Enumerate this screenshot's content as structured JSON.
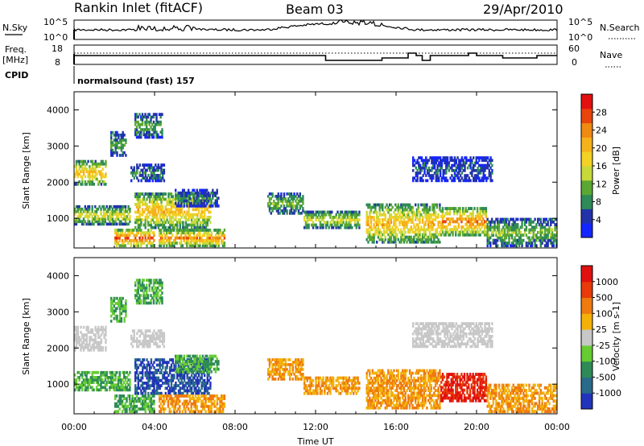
{
  "header": {
    "title": "Rankin Inlet (fitACF)",
    "beam": "Beam 03",
    "date": "29/Apr/2010"
  },
  "noise_panel": {
    "left_label": "N.Sky",
    "right_label": "N.Search",
    "left_ticks": [
      "10^5",
      "10^0"
    ],
    "right_ticks": [
      "10^5",
      "10^0"
    ]
  },
  "freq_panel": {
    "left_label_line1": "Freq.",
    "left_label_line2": "[MHz]",
    "right_label": "Nave",
    "left_ticks": [
      "18",
      "8"
    ],
    "right_ticks": [
      "60",
      "0"
    ]
  },
  "cpid": {
    "label": "CPID",
    "value": "normalsound (fast) 157"
  },
  "x_axis": {
    "label": "Time UT",
    "ticks": [
      "00:00",
      "04:00",
      "08:00",
      "12:00",
      "16:00",
      "20:00",
      "00:00"
    ]
  },
  "chart_data": [
    {
      "type": "heatmap",
      "name": "power-panel",
      "ylabel": "Slant Range [km]",
      "xlabel": "Time UT",
      "xlim": [
        0,
        24
      ],
      "ylim": [
        180,
        4500
      ],
      "yticks": [
        "1000",
        "2000",
        "3000",
        "4000"
      ],
      "colorbar": {
        "label": "Power [dB]",
        "ticks": [
          "4",
          "8",
          "12",
          "16",
          "20",
          "24",
          "28"
        ],
        "range": [
          0,
          32
        ],
        "colors": [
          "#1426ff",
          "#2233aa",
          "#2e8b57",
          "#5aa832",
          "#c8d93a",
          "#f4d125",
          "#f6b21a",
          "#ef8a12",
          "#e8440c",
          "#e31010"
        ]
      }
    },
    {
      "type": "heatmap",
      "name": "velocity-panel",
      "ylabel": "Slant Range [km]",
      "xlabel": "Time UT",
      "xlim": [
        0,
        24
      ],
      "ylim": [
        180,
        4500
      ],
      "yticks": [
        "1000",
        "2000",
        "3000",
        "4000"
      ],
      "colorbar": {
        "label": "Velocity [m s-1]",
        "ticks": [
          "1000",
          "500",
          "100",
          "25",
          "-25",
          "-100",
          "-500",
          "-1000"
        ],
        "colors": [
          "#2233bb",
          "#2a6a8a",
          "#2e8b57",
          "#66cc33",
          "#c8c8c8",
          "#f3b10a",
          "#ee7a10",
          "#e83a0a",
          "#e01010"
        ]
      }
    }
  ]
}
